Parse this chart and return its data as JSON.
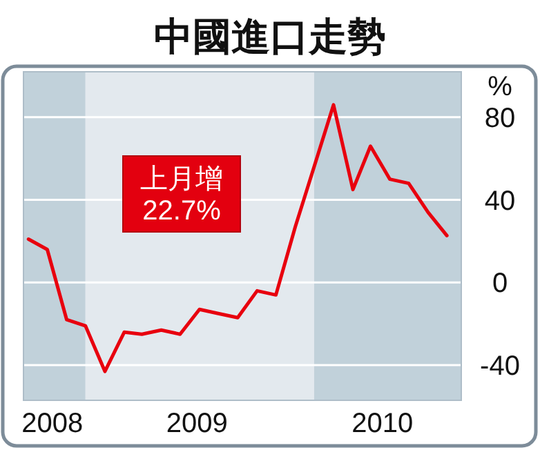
{
  "chart_data": {
    "type": "line",
    "title": "中國進口走勢",
    "ylabel": "%",
    "x": [
      "2008-09",
      "2008-10",
      "2008-11",
      "2008-12",
      "2009-01",
      "2009-02",
      "2009-03",
      "2009-04",
      "2009-05",
      "2009-06",
      "2009-07",
      "2009-08",
      "2009-09",
      "2009-10",
      "2009-11",
      "2009-12",
      "2010-01",
      "2010-02",
      "2010-03",
      "2010-04",
      "2010-05",
      "2010-06",
      "2010-07"
    ],
    "series": [
      {
        "color": "#e8000e",
        "values": [
          21,
          16,
          -18,
          -21,
          -43,
          -24,
          -25,
          -23,
          -25,
          -13,
          -15,
          -17,
          -4,
          -6,
          27,
          56,
          86,
          45,
          66,
          50,
          48,
          34,
          22.7
        ]
      }
    ],
    "xlim": [
      "2008-08-24",
      "2010-07-24"
    ],
    "xticks": [
      {
        "value": "2008-10-09",
        "label": "2008"
      },
      {
        "value": "2009-05-28",
        "label": "2009"
      },
      {
        "value": "2010-03-20",
        "label": "2010"
      }
    ],
    "ylim": [
      -57,
      102
    ],
    "yticks": [
      {
        "value": -40,
        "label": "-40"
      },
      0,
      40,
      80
    ],
    "grid": "y",
    "marker": "none",
    "line_style": "solid",
    "bands": [
      {
        "axis": "x",
        "from": "2008-08-24",
        "to": "2008-12-01",
        "color": "#c1d1da"
      },
      {
        "axis": "x",
        "from": "2008-12-01",
        "to": "2009-12-01",
        "color": "#e3e9ee"
      },
      {
        "axis": "x",
        "from": "2009-12-01",
        "to": "2010-07-24",
        "color": "#c1d1da"
      }
    ],
    "annotations": [
      "上月增\n22.7%"
    ]
  }
}
